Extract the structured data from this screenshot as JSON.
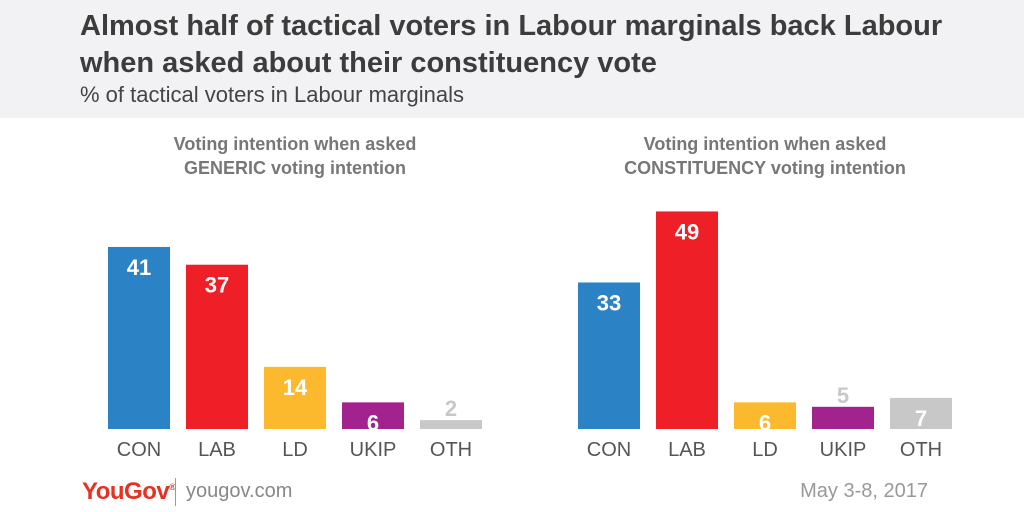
{
  "header": {
    "title": "Almost half of tactical voters in Labour marginals back Labour when asked about their constituency vote",
    "subtitle": "% of tactical voters in Labour marginals"
  },
  "panels": [
    {
      "title_line1": "Voting intention when asked",
      "title_line2": "GENERIC voting intention"
    },
    {
      "title_line1": "Voting intention when asked",
      "title_line2": "CONSTITUENCY voting intention"
    }
  ],
  "colors": {
    "CON": "#2b83c6",
    "LAB": "#ee1f26",
    "LD": "#fdb92e",
    "UKIP": "#a2238e",
    "OTH": "#c8c8c8"
  },
  "chart_data": [
    {
      "type": "bar",
      "title": "Voting intention when asked GENERIC voting intention",
      "categories": [
        "CON",
        "LAB",
        "LD",
        "UKIP",
        "OTH"
      ],
      "values": [
        41,
        37,
        14,
        6,
        2
      ],
      "ylim": [
        0,
        50
      ]
    },
    {
      "type": "bar",
      "title": "Voting intention when asked CONSTITUENCY voting intention",
      "categories": [
        "CON",
        "LAB",
        "LD",
        "UKIP",
        "OTH"
      ],
      "values": [
        33,
        49,
        6,
        5,
        7
      ],
      "ylim": [
        0,
        50
      ]
    }
  ],
  "footer": {
    "logo": "YouGov",
    "site": "yougov.com",
    "date": "May 3-8, 2017"
  }
}
